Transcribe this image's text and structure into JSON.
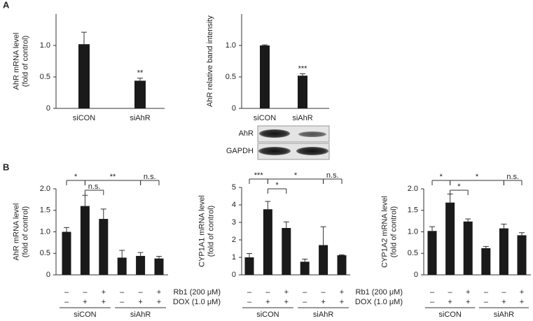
{
  "panels": [
    "A",
    "B"
  ],
  "blot": {
    "labels": [
      "AhR",
      "GAPDH"
    ]
  },
  "chart_data": [
    {
      "type": "bar",
      "y_label": [
        "AhR mRNA level",
        "(fold of control)"
      ],
      "categories": [
        "siCON",
        "siAhR"
      ],
      "values": [
        1.02,
        0.44
      ],
      "errors": [
        0.19,
        0.04
      ],
      "color": "#1a1a1a",
      "ylim": [
        0,
        1.5
      ],
      "yticks": [
        0,
        0.5,
        {
          "value": 1,
          "label": "1.0"
        }
      ],
      "annotations": [
        {
          "text": "**",
          "index": 1
        }
      ]
    },
    {
      "type": "bar",
      "y_label": [
        "AhR relative band intensity"
      ],
      "categories": [
        "siCON",
        "siAhR"
      ],
      "values": [
        1.0,
        0.52
      ],
      "errors": [
        0.01,
        0.03
      ],
      "color": "#1a1a1a",
      "ylim": [
        0,
        1.5
      ],
      "yticks": [
        0,
        0.5,
        {
          "value": 1,
          "label": "1.0"
        }
      ],
      "annotations": [
        {
          "text": "***",
          "index": 1
        }
      ]
    },
    {
      "type": "bar",
      "y_label": [
        "AhR mRNA level",
        "(fold of control)"
      ],
      "values": [
        1.0,
        1.6,
        1.3,
        0.4,
        0.44,
        0.38
      ],
      "errors": [
        0.1,
        0.25,
        0.23,
        0.17,
        0.08,
        0.05
      ],
      "color": "#1a1a1a",
      "ylim": [
        0,
        2
      ],
      "yticks": [
        0,
        0.5,
        {
          "value": 1,
          "label": "1.0"
        },
        {
          "value": 1.5,
          "label": "1.5"
        },
        {
          "value": 2,
          "label": "2.0"
        }
      ],
      "conditions": [
        {
          "signs": [
            "–",
            "–",
            "+",
            "–",
            "–",
            "+"
          ]
        },
        {
          "signs": [
            "–",
            "+",
            "+",
            "–",
            "+",
            "+"
          ]
        }
      ],
      "groups": [
        "siCON",
        "siAhR"
      ],
      "brackets": [
        {
          "text": "*",
          "bars": [
            0,
            1
          ]
        },
        {
          "text": "n.s.",
          "bars": [
            1,
            2
          ]
        },
        {
          "text": "**",
          "bars": [
            1,
            4
          ]
        },
        {
          "text": "n.s.",
          "bars": [
            4,
            5
          ]
        }
      ]
    },
    {
      "type": "bar",
      "y_label": [
        "CYP1A1 mRNA level",
        "(fold of control)"
      ],
      "values": [
        1.0,
        3.75,
        2.68,
        0.75,
        1.7,
        1.12
      ],
      "errors": [
        0.22,
        0.45,
        0.35,
        0.15,
        1.05,
        0.03
      ],
      "color": "#1a1a1a",
      "ylim": [
        0,
        5
      ],
      "yticks": [
        0,
        1,
        2,
        3,
        4,
        5
      ],
      "conditions": [
        {
          "name": "Rb1 (200 μM)",
          "signs": [
            "–",
            "–",
            "+",
            "–",
            "–",
            "+"
          ]
        },
        {
          "name": "DOX (1.0 μM)",
          "signs": [
            "–",
            "+",
            "+",
            "–",
            "+",
            "+"
          ]
        }
      ],
      "groups": [
        "siCON",
        "siAhR"
      ],
      "brackets": [
        {
          "text": "***",
          "bars": [
            0,
            1
          ]
        },
        {
          "text": "*",
          "bars": [
            1,
            2
          ]
        },
        {
          "text": "*",
          "bars": [
            1,
            4
          ]
        },
        {
          "text": "n.s.",
          "bars": [
            4,
            5
          ]
        }
      ]
    },
    {
      "type": "bar",
      "y_label": [
        "CYP1A2 mRNA level",
        "(fold of control)"
      ],
      "values": [
        1.02,
        1.68,
        1.24,
        0.62,
        1.08,
        0.92
      ],
      "errors": [
        0.1,
        0.2,
        0.06,
        0.04,
        0.1,
        0.06
      ],
      "color": "#1a1a1a",
      "ylim": [
        0,
        2
      ],
      "yticks": [
        0,
        0.5,
        {
          "value": 1,
          "label": "1.0"
        },
        {
          "value": 1.5,
          "label": "1.5"
        },
        {
          "value": 2,
          "label": "2.0"
        }
      ],
      "conditions": [
        {
          "name": "Rb1 (200 μM)",
          "signs": [
            "–",
            "–",
            "+",
            "–",
            "–",
            "+"
          ]
        },
        {
          "name": "DOX (1.0 μM)",
          "signs": [
            "–",
            "+",
            "+",
            "–",
            "+",
            "+"
          ]
        }
      ],
      "groups": [
        "siCON",
        "siAhR"
      ],
      "brackets": [
        {
          "text": "*",
          "bars": [
            0,
            1
          ]
        },
        {
          "text": "*",
          "bars": [
            1,
            2
          ]
        },
        {
          "text": "*",
          "bars": [
            1,
            4
          ]
        },
        {
          "text": "n.s.",
          "bars": [
            4,
            5
          ]
        }
      ]
    }
  ]
}
